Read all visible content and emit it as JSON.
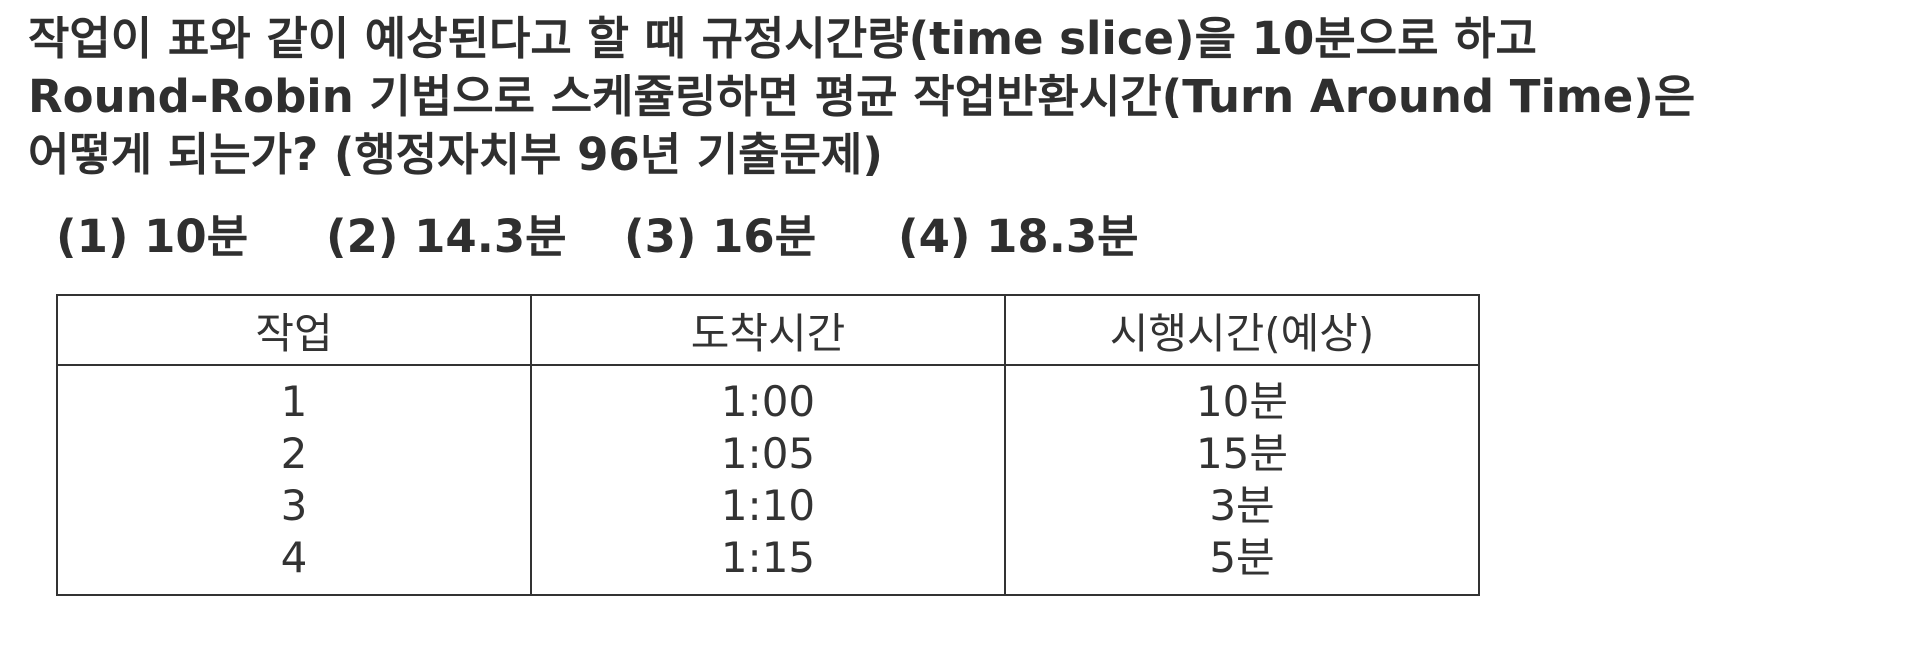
{
  "question": {
    "lines": [
      "작업이 표와 같이 예상된다고 할 때 규정시간량(time slice)을 10분으로 하고",
      "Round-Robin 기법으로 스케쥴링하면 평균 작업반환시간(Turn Around Time)은",
      "어떻게 되는가? (행정자치부 96년 기출문제)"
    ]
  },
  "choices": [
    "(1) 10분",
    "(2) 14.3분",
    "(3) 16분",
    "(4) 18.3분"
  ],
  "table": {
    "headers": [
      "작업",
      "도착시간",
      "시행시간(예상)"
    ],
    "rows": [
      {
        "job": "1",
        "arrival": "1:00",
        "runtime": "10분"
      },
      {
        "job": "2",
        "arrival": "1:05",
        "runtime": "15분"
      },
      {
        "job": "3",
        "arrival": "1:10",
        "runtime": "3분"
      },
      {
        "job": "4",
        "arrival": "1:15",
        "runtime": "5분"
      }
    ]
  }
}
